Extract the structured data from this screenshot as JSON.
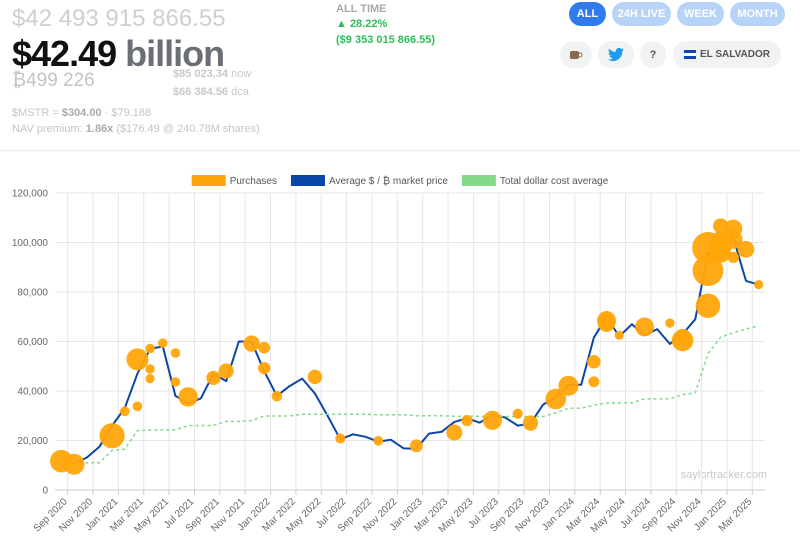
{
  "header": {
    "total_usd": "$42 493 915 866.55",
    "short_value": "$42.49",
    "short_unit": "billion",
    "btc_holdings": "₿499 226",
    "price_now": "$85 023.34",
    "price_now_label": "now",
    "price_dca": "$66 384.56",
    "price_dca_label": "dca",
    "mstr_label": "$MSTR =",
    "mstr_price": "$304.00",
    "mstr_btc": "· $79.188",
    "nav_label": "NAV premium:",
    "nav_value": "1.86x",
    "nav_detail": "($176.49 @ 240.78M shares)"
  },
  "performance": {
    "period": "ALL TIME",
    "change_pct": "▲ 28.22%",
    "change_usd": "($9 353 015 866.55)"
  },
  "buttons": [
    "ALL",
    "24H LIVE",
    "WEEK",
    "MONTH"
  ],
  "help_button": "?",
  "country_button": "EL SALVADOR",
  "watermark": "saylortracker.com",
  "chart_data": {
    "type": "line",
    "x": [
      "2020-08",
      "2020-09",
      "2020-10",
      "2020-11",
      "2020-12",
      "2021-01",
      "2021-02",
      "2021-03",
      "2021-04",
      "2021-05",
      "2021-06",
      "2021-07",
      "2021-08",
      "2021-09",
      "2021-10",
      "2021-11",
      "2021-12",
      "2022-01",
      "2022-02",
      "2022-03",
      "2022-04",
      "2022-05",
      "2022-06",
      "2022-07",
      "2022-08",
      "2022-09",
      "2022-10",
      "2022-11",
      "2022-12",
      "2023-01",
      "2023-02",
      "2023-03",
      "2023-04",
      "2023-05",
      "2023-06",
      "2023-07",
      "2023-08",
      "2023-09",
      "2023-10",
      "2023-11",
      "2023-12",
      "2024-01",
      "2024-02",
      "2024-03",
      "2024-04",
      "2024-05",
      "2024-06",
      "2024-07",
      "2024-08",
      "2024-09",
      "2024-10",
      "2024-11",
      "2024-12",
      "2025-01",
      "2025-02",
      "2025-03"
    ],
    "series": [
      {
        "name": "Purchases",
        "type": "scatter",
        "color": "#ffa50a",
        "x": [
          "2020-08",
          "2020-09",
          "2020-12",
          "2021-01",
          "2021-02",
          "2021-02",
          "2021-03",
          "2021-03",
          "2021-03",
          "2021-04",
          "2021-05",
          "2021-05",
          "2021-06",
          "2021-08",
          "2021-09",
          "2021-11",
          "2021-12",
          "2021-12",
          "2022-01",
          "2022-04",
          "2022-06",
          "2022-09",
          "2022-12",
          "2023-03",
          "2023-04",
          "2023-06",
          "2023-08",
          "2023-09",
          "2023-11",
          "2023-12",
          "2024-02",
          "2024-02",
          "2024-03",
          "2024-03",
          "2024-04",
          "2024-06",
          "2024-08",
          "2024-09",
          "2024-09",
          "2024-11",
          "2024-11",
          "2024-11",
          "2024-12",
          "2024-12",
          "2024-12",
          "2024-12",
          "2025-01",
          "2025-01",
          "2025-01",
          "2025-02",
          "2025-03"
        ],
        "values": [
          11653,
          10419,
          21925,
          31808,
          33810,
          52765,
          57146,
          48888,
          45000,
          59339,
          55387,
          43663,
          37617,
          45294,
          48099,
          59187,
          57477,
          49229,
          37865,
          45714,
          20817,
          19851,
          17871,
          23238,
          28016,
          28136,
          30835,
          27053,
          36785,
          42110,
          43723,
          51813,
          68477,
          67382,
          62503,
          65883,
          67455,
          60408,
          61750,
          74463,
          88627,
          97862,
          95976,
          98783,
          100386,
          106662,
          94004,
          105596,
          101191,
          97255,
          82981
        ],
        "sizes": [
          21454,
          16796,
          29646,
          314,
          295,
          19452,
          262,
          205,
          130,
          253,
          271,
          229,
          13005,
          3907,
          5050,
          7002,
          1434,
          1914,
          660,
          4167,
          480,
          301,
          2395,
          6455,
          1045,
          12333,
          467,
          5445,
          16130,
          14620,
          850,
          3000,
          12000,
          9245,
          122,
          11931,
          169,
          18300,
          7420,
          27200,
          51780,
          55500,
          15400,
          21550,
          15350,
          5262,
          1070,
          10107,
          11000,
          7633,
          130
        ]
      },
      {
        "name": "Average $ / ₿ market price",
        "type": "line",
        "color": "#0b46a8",
        "values": [
          11500,
          10700,
          13100,
          17500,
          26000,
          33000,
          47000,
          57000,
          58000,
          38000,
          35000,
          37000,
          47000,
          44000,
          60000,
          60000,
          48000,
          38000,
          42000,
          45000,
          39000,
          30000,
          20500,
          22500,
          21500,
          19500,
          20300,
          16800,
          16700,
          22800,
          23500,
          27500,
          29000,
          27200,
          30400,
          29300,
          26000,
          26800,
          34500,
          37500,
          42500,
          42500,
          61500,
          70000,
          62000,
          67000,
          62500,
          65000,
          59000,
          63000,
          69000,
          96000,
          93500,
          102000,
          84500,
          83000
        ]
      },
      {
        "name": "Total dollar cost average",
        "type": "line",
        "dashed": true,
        "color": "#86d98a",
        "values": [
          11500,
          11000,
          11000,
          11000,
          16000,
          16500,
          24000,
          24200,
          24300,
          24300,
          26000,
          26000,
          26100,
          27700,
          27700,
          28000,
          29900,
          29900,
          29900,
          30600,
          30600,
          30600,
          30600,
          30600,
          30600,
          30400,
          30400,
          30400,
          30000,
          30000,
          30000,
          29800,
          29800,
          29800,
          29700,
          29700,
          29700,
          29700,
          29700,
          31200,
          33000,
          33000,
          34300,
          35100,
          35200,
          35200,
          36800,
          36800,
          36800,
          38500,
          39300,
          55000,
          61700,
          63500,
          65000,
          66400
        ]
      }
    ],
    "xlim": [
      "2020-08",
      "2025-04"
    ],
    "xticks": [
      {
        "value": "2020-09",
        "label": "Sep 2020"
      },
      {
        "value": "2020-11",
        "label": "Nov 2020"
      },
      {
        "value": "2021-01",
        "label": "Jan 2021"
      },
      {
        "value": "2021-03",
        "label": "Mar 2021"
      },
      {
        "value": "2021-05",
        "label": "May 2021"
      },
      {
        "value": "2021-07",
        "label": "Jul 2021"
      },
      {
        "value": "2021-09",
        "label": "Sep 2021"
      },
      {
        "value": "2021-11",
        "label": "Nov 2021"
      },
      {
        "value": "2022-01",
        "label": "Jan 2022"
      },
      {
        "value": "2022-03",
        "label": "Mar 2022"
      },
      {
        "value": "2022-05",
        "label": "May 2022"
      },
      {
        "value": "2022-07",
        "label": "Jul 2022"
      },
      {
        "value": "2022-09",
        "label": "Sep 2022"
      },
      {
        "value": "2022-11",
        "label": "Nov 2022"
      },
      {
        "value": "2023-01",
        "label": "Jan 2023"
      },
      {
        "value": "2023-03",
        "label": "Mar 2023"
      },
      {
        "value": "2023-05",
        "label": "May 2023"
      },
      {
        "value": "2023-07",
        "label": "Jul 2023"
      },
      {
        "value": "2023-09",
        "label": "Sep 2023"
      },
      {
        "value": "2023-11",
        "label": "Nov 2023"
      },
      {
        "value": "2024-01",
        "label": "Jan 2024"
      },
      {
        "value": "2024-03",
        "label": "Mar 2024"
      },
      {
        "value": "2024-05",
        "label": "May 2024"
      },
      {
        "value": "2024-07",
        "label": "Jul 2024"
      },
      {
        "value": "2024-09",
        "label": "Sep 2024"
      },
      {
        "value": "2024-11",
        "label": "Nov 2024"
      },
      {
        "value": "2025-01",
        "label": "Jan 2025"
      },
      {
        "value": "2025-03",
        "label": "Mar 2025"
      }
    ],
    "ylim": [
      0,
      120000
    ],
    "yticks": [
      0,
      {
        "value": 20000,
        "label": "20,000"
      },
      {
        "value": 40000,
        "label": "40,000"
      },
      {
        "value": 60000,
        "label": "60,000"
      },
      {
        "value": 80000,
        "label": "80,000"
      },
      {
        "value": 100000,
        "label": "100,000"
      },
      {
        "value": 120000,
        "label": "120,000"
      }
    ],
    "grid": true
  }
}
